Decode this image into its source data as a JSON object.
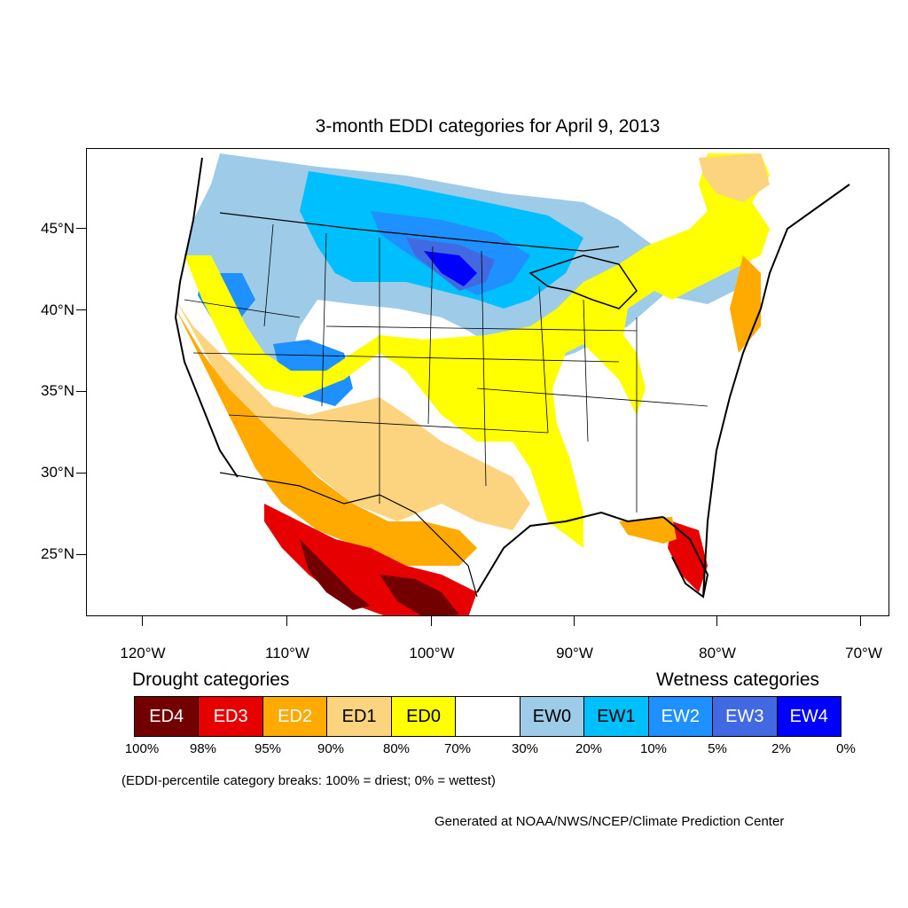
{
  "title": "3-month EDDI categories for April 9, 2013",
  "lat_labels": [
    "45°N",
    "40°N",
    "35°N",
    "30°N",
    "25°N"
  ],
  "lon_labels": [
    "120°W",
    "110°W",
    "100°W",
    "90°W",
    "80°W",
    "70°W"
  ],
  "legend": {
    "drought_heading": "Drought categories",
    "wetness_heading": "Wetness categories",
    "categories": [
      {
        "label": "ED4",
        "color": "#730000",
        "text_color": "#ffffff"
      },
      {
        "label": "ED3",
        "color": "#e60000",
        "text_color": "#ffffff"
      },
      {
        "label": "ED2",
        "color": "#ffaa00",
        "text_color": "#ffffff"
      },
      {
        "label": "ED1",
        "color": "#fcd37f",
        "text_color": "#000000"
      },
      {
        "label": "ED0",
        "color": "#ffff00",
        "text_color": "#000000"
      },
      {
        "label": "",
        "color": "#ffffff",
        "text_color": "#000000"
      },
      {
        "label": "EW0",
        "color": "#9ecbe8",
        "text_color": "#000000"
      },
      {
        "label": "EW1",
        "color": "#00bfff",
        "text_color": "#000000"
      },
      {
        "label": "EW2",
        "color": "#1e90ff",
        "text_color": "#ffffff"
      },
      {
        "label": "EW3",
        "color": "#4169e1",
        "text_color": "#ffffff"
      },
      {
        "label": "EW4",
        "color": "#0000ff",
        "text_color": "#ffffff"
      }
    ],
    "breaks": [
      "100%",
      "98%",
      "95%",
      "90%",
      "80%",
      "70%",
      "30%",
      "20%",
      "10%",
      "5%",
      "2%",
      "0%"
    ]
  },
  "note": "(EDDI-percentile category breaks: 100% = driest; 0% = wettest)",
  "credit": "Generated at NOAA/NWS/NCEP/Climate Prediction Center"
}
